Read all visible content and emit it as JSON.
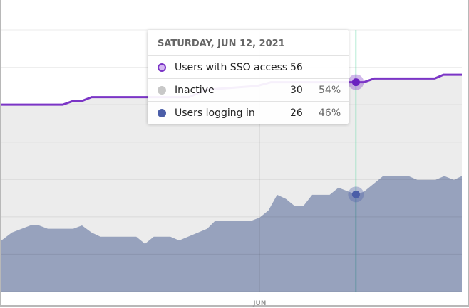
{
  "chart_data": {
    "type": "area",
    "title": "",
    "x_unit": "days offset from Jun 1, 2021",
    "xlim": [
      -29.5,
      23.1
    ],
    "ylim": [
      0,
      70
    ],
    "grid": true,
    "x_ticks": [
      {
        "x": 0,
        "label": "JUN"
      }
    ],
    "series": [
      {
        "name": "Users with SSO access",
        "type": "line",
        "color": "#7b35c6",
        "x": [
          -29.5,
          -22.5,
          -21.3,
          -20.3,
          -19.2,
          -8.1,
          -6.1,
          -0.3,
          1.3,
          11,
          11.9,
          13.1,
          20,
          21,
          23.1
        ],
        "values": [
          50,
          50,
          51,
          51,
          52,
          52,
          54,
          55,
          56,
          56,
          56,
          57,
          57,
          58,
          58
        ]
      },
      {
        "name": "Users logging in",
        "type": "area",
        "color": "#97a2bd",
        "x": [
          -29.5,
          -28.3,
          -26.2,
          -25.2,
          -24.2,
          -21.3,
          -20.3,
          -19.2,
          -18.2,
          -14.1,
          -13.1,
          -12.1,
          -10.2,
          -9.2,
          -6,
          -5.1,
          -1,
          0,
          1,
          2,
          3,
          4,
          5,
          6,
          8,
          9,
          11,
          11.9,
          14.1,
          17,
          18,
          20.1,
          21.1,
          22.2,
          23.1
        ],
        "values": [
          13.7,
          15.8,
          17.7,
          17.7,
          16.8,
          16.8,
          17.7,
          15.8,
          14.7,
          14.7,
          12.8,
          14.7,
          14.7,
          13.7,
          16.8,
          18.9,
          18.9,
          19.8,
          21.7,
          25.9,
          24.8,
          22.9,
          22.9,
          25.9,
          25.9,
          27.8,
          26,
          26.7,
          30.9,
          30.9,
          29.9,
          29.9,
          30.9,
          29.9,
          30.9
        ]
      }
    ],
    "inactive_series": {
      "name": "Inactive",
      "color": "#ececec"
    },
    "crosshair_x": 11
  },
  "tooltip": {
    "date": "SATURDAY, JUN 12, 2021",
    "rows": [
      {
        "label": "Users with SSO access",
        "value": "56",
        "pct": "",
        "color": "#7b35c6",
        "fill": "#d5b8f2"
      },
      {
        "label": "Inactive",
        "value": "30",
        "pct": "54%",
        "color": "#c8c8c8",
        "fill": "#c8c8c8"
      },
      {
        "label": "Users logging in",
        "value": "26",
        "pct": "46%",
        "color": "#4b5ea8",
        "fill": "#4b5ea8"
      }
    ]
  }
}
